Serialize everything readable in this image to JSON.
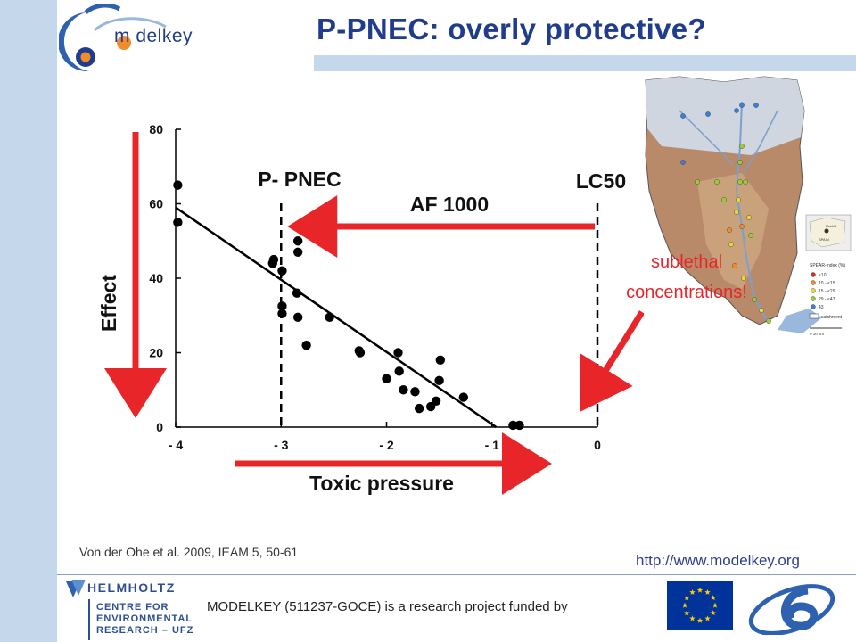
{
  "slide": {
    "title": "P-PNEC: overly protective?",
    "logo_text": "m  delkey",
    "citation": "Von der Ohe et al. 2009, IEAM 5, 50-61",
    "url": "http://www.modelkey.org",
    "footer": "MODELKEY (511237-GOCE) is a research project funded by",
    "helmholtz_lines": [
      "HELMHOLTZ",
      "CENTRE FOR",
      "ENVIRONMENTAL",
      "RESEARCH – UFZ"
    ]
  },
  "map_legend": {
    "title": "SPEAR-Index (%)",
    "items": [
      "<10",
      "10 - <15",
      "15 - <29",
      "29 - <43",
      "43"
    ],
    "colors": [
      "#d7301f",
      "#f08c2c",
      "#e8d93a",
      "#9acd32",
      "#3b7dd8"
    ],
    "catchment_label": "catchment",
    "scale_label": "0      10 km",
    "inset_labels": [
      "Madrid",
      "SPAIN"
    ]
  },
  "chart_data": {
    "type": "scatter",
    "x_ticks": [
      "- 4",
      "- 3",
      "- 2",
      "- 1",
      "0"
    ],
    "x_tick_values": [
      -4,
      -3,
      -2,
      -1,
      0
    ],
    "y_ticks": [
      "0",
      "20",
      "40",
      "60",
      "80"
    ],
    "y_tick_values": [
      0,
      20,
      40,
      60,
      80
    ],
    "xlim": [
      -4,
      0
    ],
    "ylim": [
      0,
      80
    ],
    "xlabel": "Toxic pressure",
    "ylabel": "Effect",
    "points": [
      [
        -3.98,
        65
      ],
      [
        -3.98,
        55
      ],
      [
        -3.07,
        45
      ],
      [
        -3.08,
        44
      ],
      [
        -2.99,
        42
      ],
      [
        -2.84,
        50
      ],
      [
        -2.84,
        47
      ],
      [
        -2.85,
        36
      ],
      [
        -2.99,
        32.5
      ],
      [
        -2.99,
        30.5
      ],
      [
        -2.84,
        29.5
      ],
      [
        -2.76,
        22
      ],
      [
        -2.54,
        29.5
      ],
      [
        -2.26,
        20.5
      ],
      [
        -2.25,
        20
      ],
      [
        -2.0,
        13
      ],
      [
        -1.89,
        20
      ],
      [
        -1.88,
        15
      ],
      [
        -1.84,
        10
      ],
      [
        -1.73,
        9.5
      ],
      [
        -1.69,
        5
      ],
      [
        -1.58,
        5.5
      ],
      [
        -1.53,
        7
      ],
      [
        -1.5,
        12.5
      ],
      [
        -1.49,
        18
      ],
      [
        -1.27,
        8
      ],
      [
        -0.8,
        0.5
      ],
      [
        -0.74,
        0.5
      ]
    ],
    "regression": {
      "x": [
        -4,
        -0.96
      ],
      "y": [
        59,
        0
      ]
    },
    "markers": [
      {
        "label": "P- PNEC",
        "x": -3
      },
      {
        "label": "LC50",
        "x": 0
      }
    ],
    "arrow_label": "AF 1000",
    "annotation": "sublethal concentrations!"
  }
}
